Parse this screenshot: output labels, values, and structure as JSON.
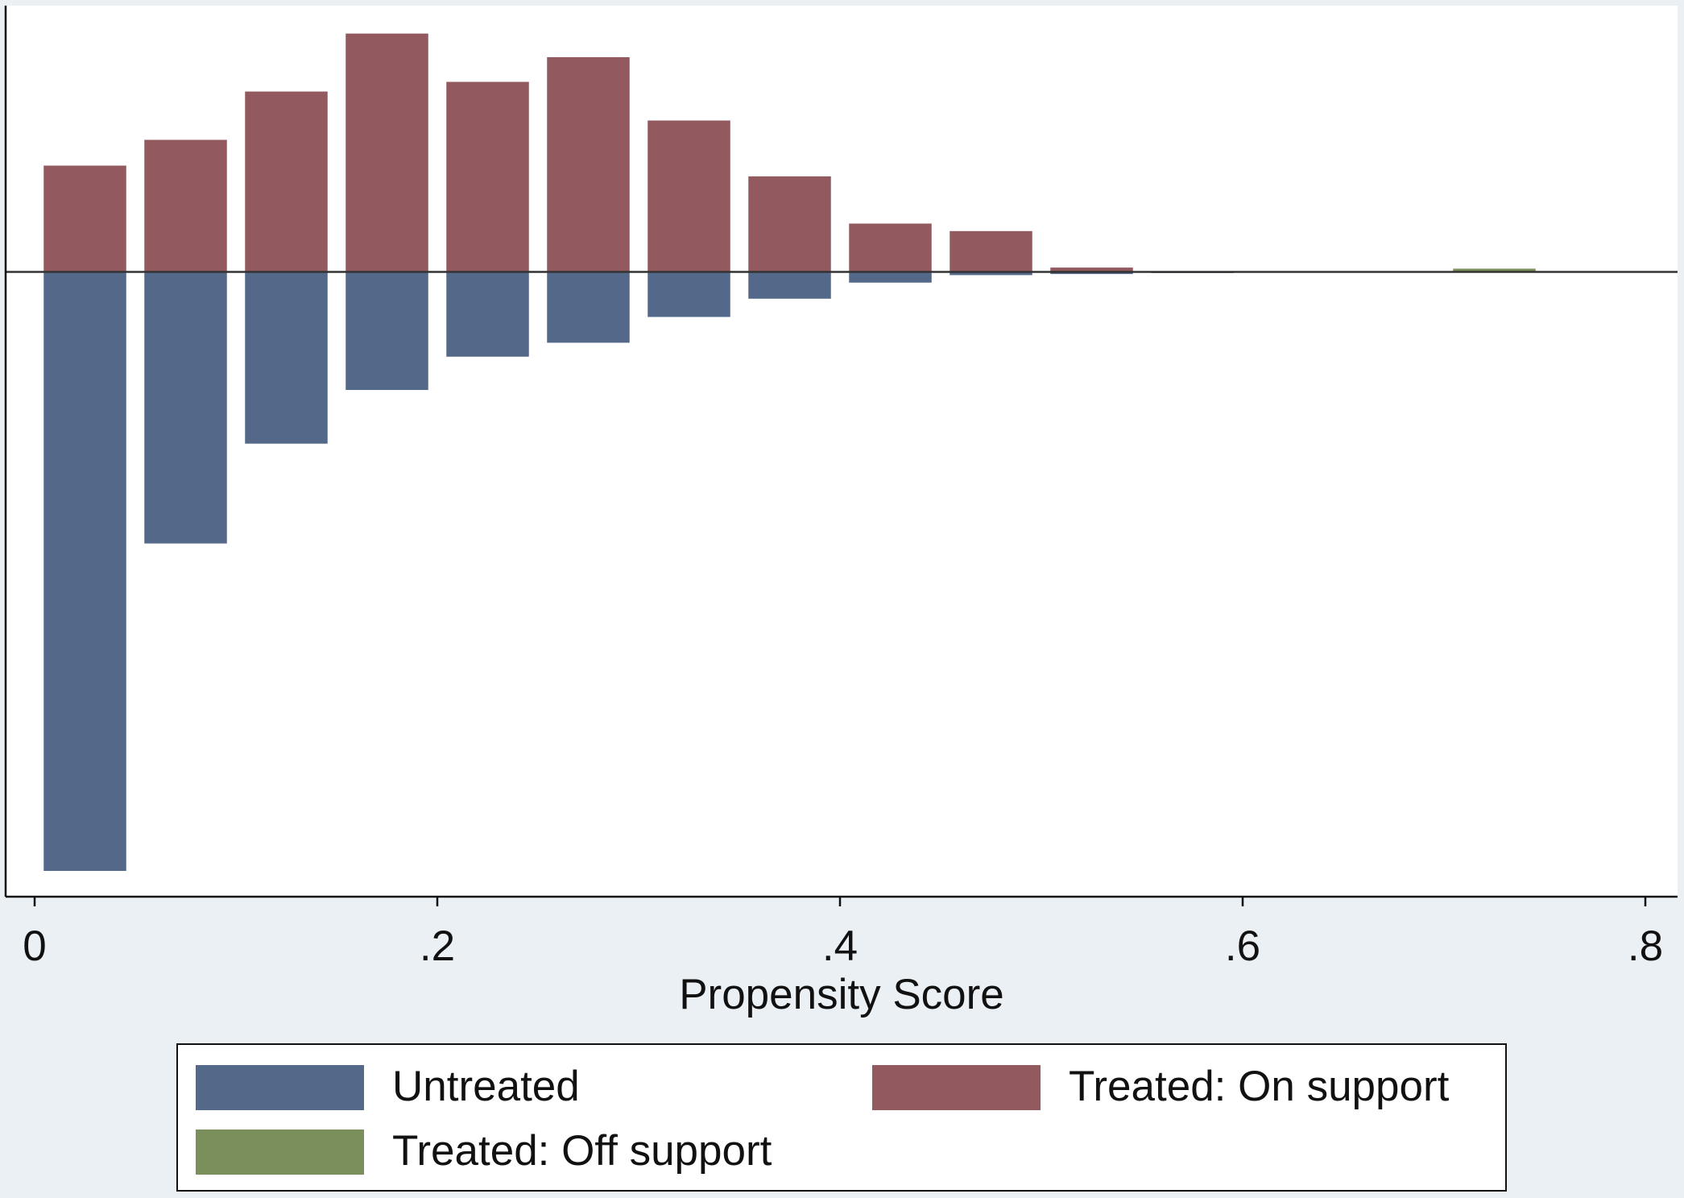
{
  "chart_data": {
    "type": "bar",
    "x": [
      0.025,
      0.075,
      0.125,
      0.175,
      0.225,
      0.275,
      0.325,
      0.375,
      0.425,
      0.475,
      0.525,
      0.575,
      0.625,
      0.675,
      0.725
    ],
    "series": [
      {
        "name": "Untreated",
        "color": "#54698a",
        "values": [
          -5.58,
          -2.53,
          -1.6,
          -1.1,
          -0.79,
          -0.66,
          -0.42,
          -0.25,
          -0.1,
          -0.03,
          -0.02,
          -0.01,
          null,
          null,
          null
        ]
      },
      {
        "name": "Treated: On support",
        "color": "#925a5f",
        "values": [
          0.99,
          1.23,
          1.68,
          2.22,
          1.77,
          2.0,
          1.41,
          0.89,
          0.45,
          0.38,
          0.04,
          null,
          null,
          null,
          null
        ]
      },
      {
        "name": "Treated: Off support",
        "color": "#7b8f5c",
        "values": [
          null,
          null,
          null,
          null,
          null,
          null,
          null,
          null,
          null,
          null,
          null,
          null,
          null,
          null,
          0.03
        ]
      }
    ],
    "x_label": "Propensity Score",
    "xlim": [
      -0.0144,
      0.816
    ],
    "xticks": [
      0,
      {
        "value": 0.2,
        "label": ".2"
      },
      {
        "value": 0.4,
        "label": ".4"
      },
      {
        "value": 0.6,
        "label": ".6"
      },
      {
        "value": 0.8,
        "label": ".8"
      }
    ],
    "ylim": [
      -5.82,
      2.48
    ],
    "grid": false,
    "legend": "bottom"
  }
}
